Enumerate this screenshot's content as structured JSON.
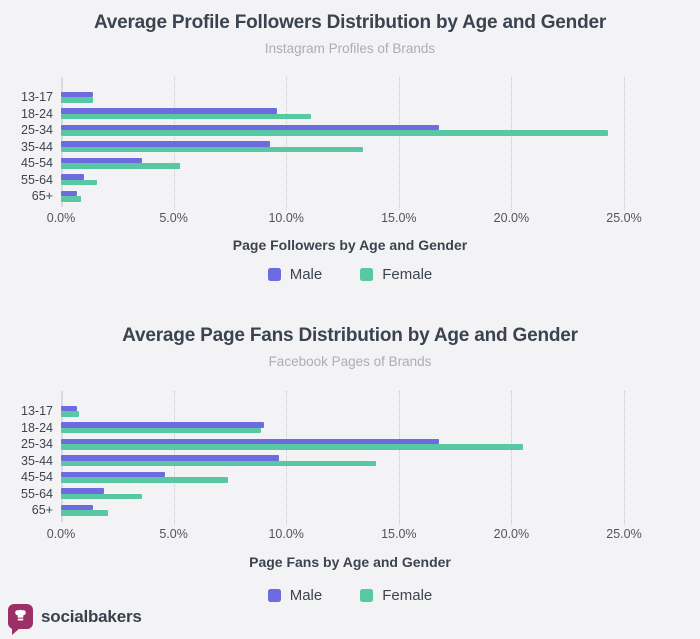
{
  "page": {
    "background": "#f3f3f5"
  },
  "colors": {
    "male": "#6c6ce0",
    "female": "#58c8a3",
    "title_text": "#3b4350",
    "subtitle_text": "#a9aeb7",
    "tick_text": "#4f555f",
    "axis_line": "#d9dade",
    "gridline": "#c6c8d0",
    "logo_bubble": "#9c2f66"
  },
  "footer": {
    "brand": "socialbakers"
  },
  "chart_data": [
    {
      "type": "bar",
      "orientation": "horizontal",
      "title": "Average Profile Followers Distribution by Age and Gender",
      "subtitle": "Instagram Profiles of Brands",
      "xlabel": "Page Followers by Age and Gender",
      "categories": [
        "13-17",
        "18-24",
        "25-34",
        "35-44",
        "45-54",
        "55-64",
        "65+"
      ],
      "series": [
        {
          "name": "Male",
          "values": [
            1.4,
            9.6,
            16.8,
            9.3,
            3.6,
            1.0,
            0.7
          ]
        },
        {
          "name": "Female",
          "values": [
            1.4,
            11.1,
            24.3,
            13.4,
            5.3,
            1.6,
            0.9
          ]
        }
      ],
      "xlim": [
        0,
        25
      ],
      "xticks": [
        "0.0%",
        "5.0%",
        "10.0%",
        "15.0%",
        "20.0%",
        "25.0%"
      ],
      "grid": "vertical-dotted",
      "legend_position": "bottom"
    },
    {
      "type": "bar",
      "orientation": "horizontal",
      "title": "Average Page Fans Distribution by Age and Gender",
      "subtitle": "Facebook Pages of Brands",
      "xlabel": "Page Fans by Age and Gender",
      "categories": [
        "13-17",
        "18-24",
        "25-34",
        "35-44",
        "45-54",
        "55-64",
        "65+"
      ],
      "series": [
        {
          "name": "Male",
          "values": [
            0.7,
            9.0,
            16.8,
            9.7,
            4.6,
            1.9,
            1.4
          ]
        },
        {
          "name": "Female",
          "values": [
            0.8,
            8.9,
            20.5,
            14.0,
            7.4,
            3.6,
            2.1
          ]
        }
      ],
      "xlim": [
        0,
        25
      ],
      "xticks": [
        "0.0%",
        "5.0%",
        "10.0%",
        "15.0%",
        "20.0%",
        "25.0%"
      ],
      "grid": "vertical-dotted",
      "legend_position": "bottom"
    }
  ]
}
